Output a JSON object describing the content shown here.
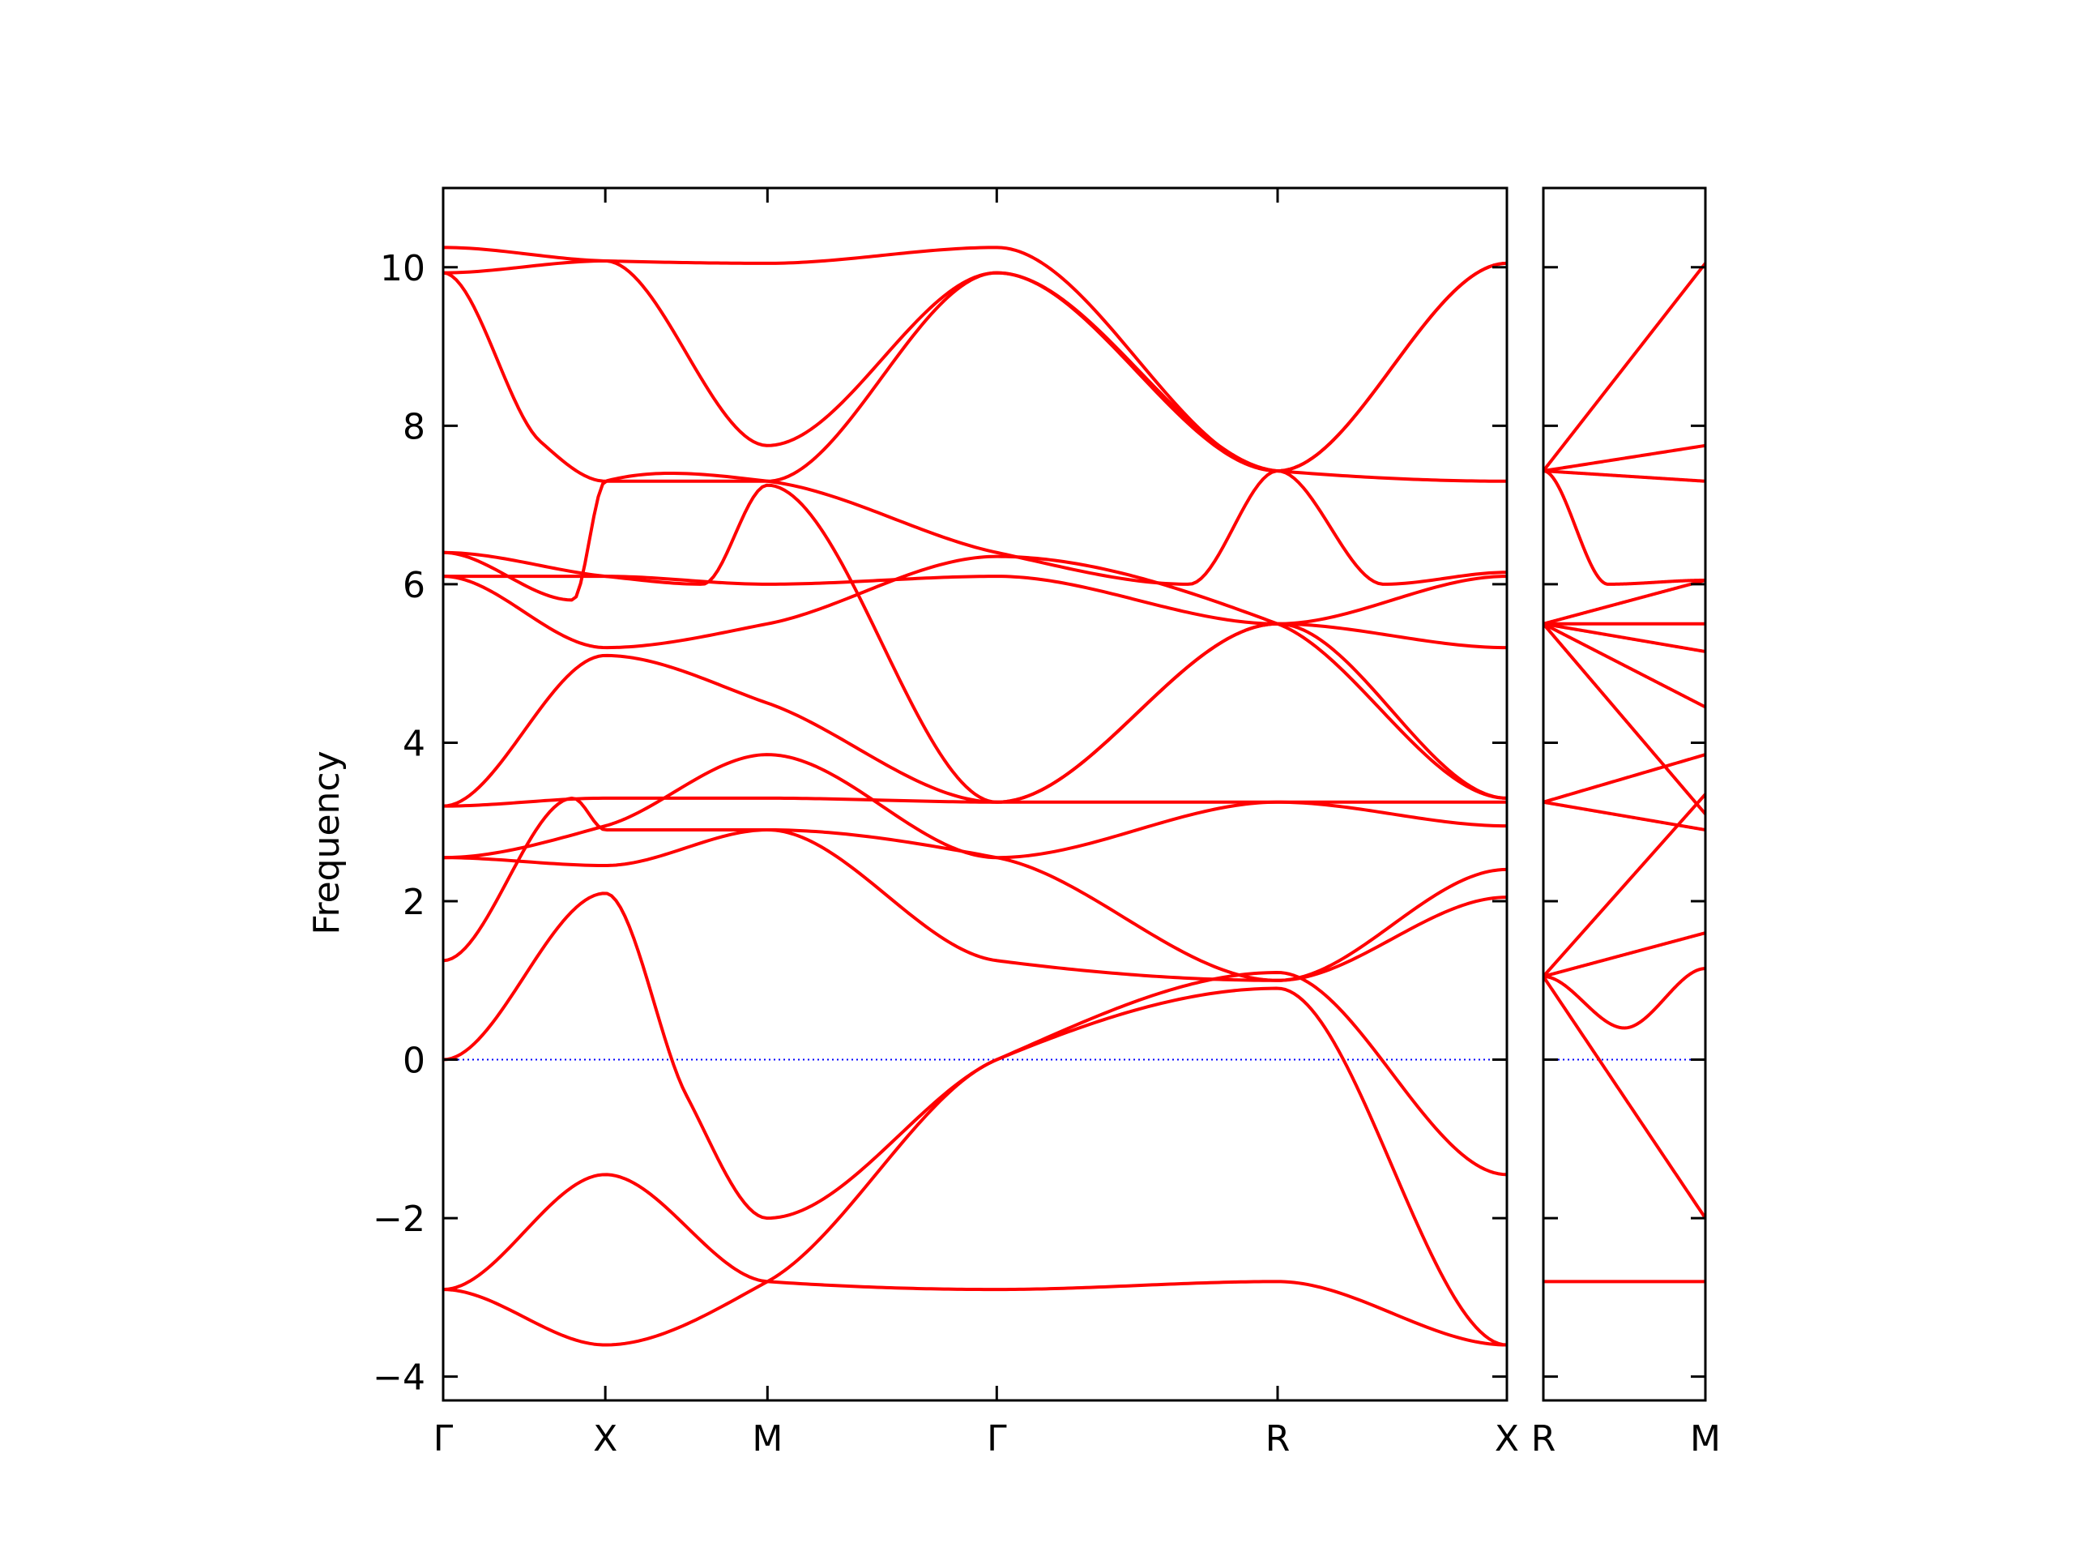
{
  "colors": {
    "band": "#ff0000",
    "zero_line": "#0000ff",
    "axes": "#000000"
  },
  "chart_data": {
    "type": "line",
    "title": "",
    "ylabel": "Frequency",
    "xlabel": "",
    "ylim": [
      -4.3,
      11.0
    ],
    "yticks": [
      -4,
      -2,
      0,
      2,
      4,
      6,
      8,
      10
    ],
    "ytick_labels": [
      "−4",
      "−2",
      "0",
      "2",
      "4",
      "6",
      "8",
      "10"
    ],
    "zero_line": {
      "y": 0,
      "style": "dotted"
    },
    "grid": false,
    "legend": "none",
    "panels": [
      {
        "kpoints": [
          "Γ",
          "X",
          "M",
          "Γ",
          "R",
          "X"
        ],
        "kpoint_positions": [
          0,
          0.5,
          1.0,
          1.707,
          2.573,
          3.28
        ],
        "series": [
          {
            "x": [
              0,
              0.5,
              1.0,
              1.707,
              2.573,
              3.28
            ],
            "y": [
              10.25,
              10.08,
              10.05,
              10.25,
              7.43,
              10.05
            ]
          },
          {
            "x": [
              0,
              0.5,
              1.0,
              1.707,
              2.573,
              3.28
            ],
            "y": [
              9.93,
              10.08,
              7.75,
              9.93,
              7.43,
              10.05
            ]
          },
          {
            "x": [
              0,
              0.3,
              0.5,
              1.0,
              1.707,
              2.573,
              3.28
            ],
            "y": [
              9.93,
              7.8,
              7.3,
              7.3,
              9.93,
              7.43,
              7.3
            ]
          },
          {
            "x": [
              0,
              0.4,
              0.5,
              0.7,
              1.0,
              1.707,
              2.3,
              2.573,
              2.9,
              3.28
            ],
            "y": [
              6.4,
              5.8,
              7.3,
              7.4,
              7.3,
              6.4,
              6.0,
              7.43,
              6.0,
              6.15
            ]
          },
          {
            "x": [
              0,
              0.5,
              1.0,
              1.707,
              2.573,
              3.28
            ],
            "y": [
              6.1,
              6.1,
              6.0,
              6.1,
              5.5,
              6.1
            ]
          },
          {
            "x": [
              0,
              0.5,
              0.8,
              1.0,
              1.707,
              2.573,
              3.28
            ],
            "y": [
              6.4,
              6.1,
              6.0,
              7.25,
              3.25,
              5.5,
              5.2
            ]
          },
          {
            "x": [
              0,
              0.5,
              1.0,
              1.707,
              2.573,
              3.28
            ],
            "y": [
              6.1,
              5.2,
              5.5,
              6.35,
              5.5,
              3.3
            ]
          },
          {
            "x": [
              0,
              0.5,
              1.0,
              1.707,
              2.573,
              3.28
            ],
            "y": [
              3.2,
              5.1,
              4.5,
              3.25,
              5.5,
              3.3
            ]
          },
          {
            "x": [
              0,
              0.5,
              1.0,
              1.707,
              2.573,
              3.28
            ],
            "y": [
              3.2,
              3.3,
              3.3,
              3.25,
              3.25,
              3.25
            ]
          },
          {
            "x": [
              0,
              0.5,
              1.0,
              1.707,
              2.573,
              3.28
            ],
            "y": [
              2.55,
              2.95,
              3.85,
              2.55,
              3.25,
              2.95
            ]
          },
          {
            "x": [
              0,
              0.5,
              1.0,
              1.707,
              2.573,
              3.28
            ],
            "y": [
              2.55,
              2.45,
              2.9,
              2.55,
              1.0,
              2.4
            ]
          },
          {
            "x": [
              0,
              0.4,
              0.5,
              1.0,
              1.707,
              2.573,
              3.28
            ],
            "y": [
              1.25,
              3.3,
              2.9,
              2.9,
              1.25,
              1.0,
              2.05
            ]
          },
          {
            "x": [
              0,
              0.5,
              0.75,
              1.0,
              1.707,
              2.573,
              3.28
            ],
            "y": [
              0,
              2.1,
              -0.45,
              -2.0,
              0,
              1.1,
              -1.45
            ]
          },
          {
            "x": [
              0,
              0.5,
              1.0,
              1.707,
              2.573,
              3.28
            ],
            "y": [
              -2.9,
              -1.45,
              -2.8,
              -2.9,
              -2.8,
              -3.6
            ]
          },
          {
            "x": [
              0,
              0.5,
              1.0,
              1.707,
              2.573,
              3.28
            ],
            "y": [
              -2.9,
              -3.6,
              -2.8,
              0,
              0.9,
              -3.6
            ]
          }
        ]
      },
      {
        "kpoints": [
          "R",
          "M"
        ],
        "kpoint_positions": [
          0,
          0.5
        ],
        "series": [
          {
            "x": [
              0,
              0.5
            ],
            "y": [
              7.43,
              10.05
            ]
          },
          {
            "x": [
              0,
              0.5
            ],
            "y": [
              7.43,
              7.75
            ]
          },
          {
            "x": [
              0,
              0.5
            ],
            "y": [
              7.43,
              7.3
            ]
          },
          {
            "x": [
              0,
              0.2,
              0.5
            ],
            "y": [
              7.43,
              6.0,
              6.05
            ]
          },
          {
            "x": [
              0,
              0.5
            ],
            "y": [
              5.5,
              6.05
            ]
          },
          {
            "x": [
              0,
              0.5
            ],
            "y": [
              5.5,
              5.5
            ]
          },
          {
            "x": [
              0,
              0.5
            ],
            "y": [
              5.5,
              5.15
            ]
          },
          {
            "x": [
              0,
              0.5
            ],
            "y": [
              5.5,
              4.45
            ]
          },
          {
            "x": [
              0,
              0.5
            ],
            "y": [
              5.5,
              3.1
            ]
          },
          {
            "x": [
              0,
              0.5
            ],
            "y": [
              3.25,
              3.85
            ]
          },
          {
            "x": [
              0,
              0.5
            ],
            "y": [
              3.25,
              2.9
            ]
          },
          {
            "x": [
              0,
              0.5
            ],
            "y": [
              1.05,
              3.35
            ]
          },
          {
            "x": [
              0,
              0.5
            ],
            "y": [
              1.05,
              1.6
            ]
          },
          {
            "x": [
              0,
              0.25,
              0.5
            ],
            "y": [
              1.05,
              0.4,
              1.15
            ]
          },
          {
            "x": [
              0,
              0.5
            ],
            "y": [
              1.05,
              -2.0
            ]
          },
          {
            "x": [
              0,
              0.5
            ],
            "y": [
              -2.8,
              -2.8
            ]
          }
        ]
      }
    ]
  }
}
